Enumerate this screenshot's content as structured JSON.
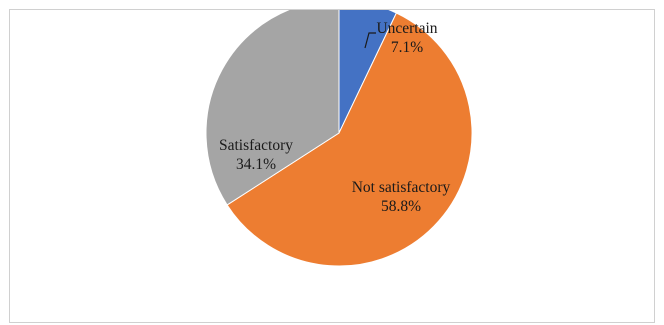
{
  "chart_data": {
    "type": "pie",
    "title": "",
    "start_angle_deg": 0,
    "direction": "clockwise",
    "slices": [
      {
        "label": "Uncertain",
        "value": 7.1,
        "display": "7.1%",
        "color": "#4472c4"
      },
      {
        "label": "Not satisfactory",
        "value": 58.8,
        "display": "58.8%",
        "color": "#ed7d31"
      },
      {
        "label": "Satisfactory",
        "value": 34.1,
        "display": "34.1%",
        "color": "#a5a5a5"
      }
    ],
    "legend": "none",
    "label_text_color": "#1a1a1a"
  }
}
